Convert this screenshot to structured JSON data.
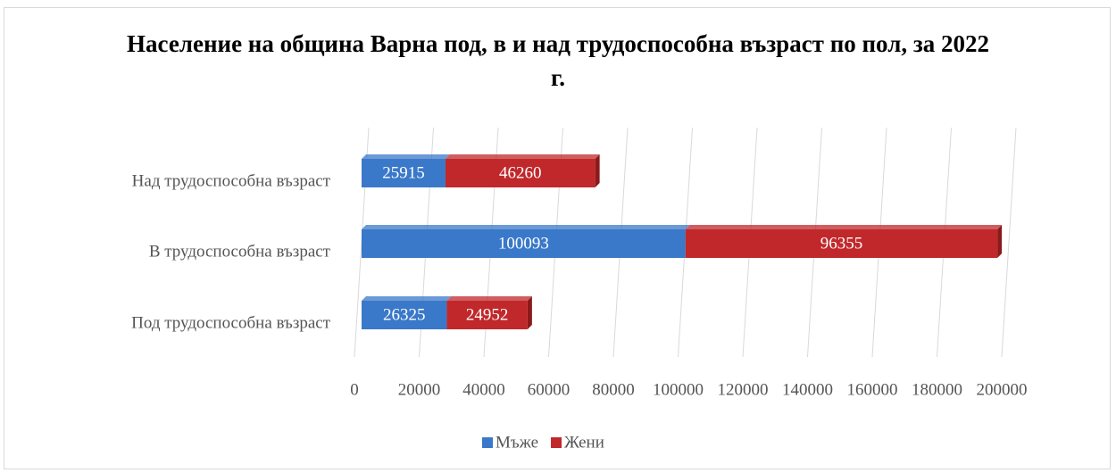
{
  "chart_data": {
    "type": "bar",
    "orientation": "horizontal",
    "stacked": true,
    "title": "Население на община Варна под, в и над трудоспособна възраст по пол, за 2022 г.",
    "categories": [
      "Над трудоспособна възраст",
      "В трудоспособна възраст",
      "Под трудоспособна възраст"
    ],
    "series": [
      {
        "name": "Мъже",
        "color": "#3a78c9",
        "values": [
          25915,
          100093,
          26325
        ]
      },
      {
        "name": "Жени",
        "color": "#c0282b",
        "values": [
          46260,
          96355,
          24952
        ]
      }
    ],
    "xlim": [
      0,
      200000
    ],
    "xticks": [
      0,
      20000,
      40000,
      60000,
      80000,
      100000,
      120000,
      140000,
      160000,
      180000,
      200000
    ],
    "grid": true,
    "legend": "bottom"
  }
}
